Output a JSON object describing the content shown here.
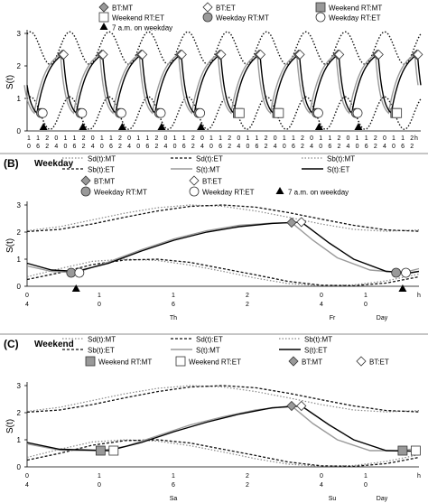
{
  "chart_data": [
    {
      "type": "line",
      "panel": "A",
      "ylabel": "S(t)",
      "ylim": [
        0,
        3
      ],
      "y_ticks": [
        "0",
        "1",
        "2",
        "3"
      ],
      "xlabel_unit": "h",
      "x_tick_labels": [
        "1|0",
        "1|6",
        "2|2",
        "0|4",
        "1|0",
        "1|6",
        "2|2",
        "0|4",
        "1|0",
        "1|6",
        "2|2",
        "0|4",
        "1|0",
        "1|6",
        "2|2",
        "0|4",
        "1|0",
        "1|6",
        "2|2",
        "0|4",
        "1|0",
        "1|6",
        "2|2",
        "0|4",
        "1|0",
        "1|6",
        "2|2",
        "0|4",
        "1|0",
        "1|6",
        "2|2",
        "0|4",
        "1|0",
        "1|6",
        "2|2",
        "0|4",
        "1|0",
        "1|6",
        "2|2",
        "0|4",
        "1|0",
        "1|6",
        "2|2"
      ],
      "legend": [
        {
          "label": "BT:MT",
          "marker": "diamond-grey"
        },
        {
          "label": "BT:ET",
          "marker": "diamond-open"
        },
        {
          "label": "Weekend RT:MT",
          "marker": "square-grey"
        },
        {
          "label": "Weekend RT:ET",
          "marker": "square-open"
        },
        {
          "label": "Weekday RT:MT",
          "marker": "circle-grey"
        },
        {
          "label": "Weekday RT:ET",
          "marker": "circle-open"
        },
        {
          "label": "7 a.m. on weekday",
          "marker": "triangle-black"
        }
      ],
      "grid": false,
      "series": [
        {
          "name": "",
          "style": "dotted",
          "period_h": 24,
          "mean": 2.55,
          "amp": 0.5
        },
        {
          "name": "",
          "style": "dotted",
          "period_h": 24,
          "mean": 0.55,
          "amp": 0.5
        },
        {
          "name": "",
          "style": "solid",
          "period_h": 24,
          "min": 0.55,
          "max": 2.35
        }
      ]
    },
    {
      "type": "line",
      "panel": "B",
      "panel_label": "(B)",
      "title": "Weekday",
      "ylabel": "S(t)",
      "ylim": [
        0,
        3
      ],
      "y_ticks": [
        "0",
        "1",
        "2",
        "3"
      ],
      "xlabel_unit": "h",
      "x_tick_labels": [
        "0|4",
        "1|0",
        "1|6",
        "2|2",
        "0|4",
        "1|0"
      ],
      "day_labels": [
        "Th",
        "Fr",
        "Day"
      ],
      "legend": [
        {
          "label": "Sd(t):MT",
          "style": "dotted-grey"
        },
        {
          "label": "Sd(t):ET",
          "style": "dashed-black"
        },
        {
          "label": "Sb(t):MT",
          "style": "dotted-grey"
        },
        {
          "label": "Sb(t):ET",
          "style": "dashed-black"
        },
        {
          "label": "S(t):MT",
          "style": "solid-grey"
        },
        {
          "label": "S(t):ET",
          "style": "solid-black"
        },
        {
          "label": "BT:MT",
          "marker": "diamond-grey"
        },
        {
          "label": "BT:ET",
          "marker": "diamond-open"
        },
        {
          "label": "Weekday RT:MT",
          "marker": "circle-grey"
        },
        {
          "label": "Weekday RT:ET",
          "marker": "circle-open"
        },
        {
          "label": "7 a.m. on weekday",
          "marker": "triangle-black"
        }
      ],
      "x_hours": [
        4,
        28
      ],
      "series": [
        {
          "name": "Sd(t):MT",
          "x": [
            4,
            6,
            8,
            10,
            12,
            14,
            16,
            18,
            20,
            22,
            24,
            26,
            28
          ],
          "y": [
            2.05,
            2.2,
            2.45,
            2.7,
            2.9,
            3.0,
            2.95,
            2.78,
            2.55,
            2.3,
            2.1,
            2.03,
            2.08
          ]
        },
        {
          "name": "Sd(t):ET",
          "x": [
            4,
            6,
            8,
            10,
            12,
            14,
            16,
            18,
            20,
            22,
            24,
            26,
            28
          ],
          "y": [
            2.02,
            2.1,
            2.3,
            2.55,
            2.78,
            2.95,
            3.0,
            2.92,
            2.72,
            2.48,
            2.25,
            2.08,
            2.03
          ]
        },
        {
          "name": "Sb(t):MT",
          "x": [
            4,
            6,
            8,
            10,
            12,
            14,
            16,
            18,
            20,
            22,
            24,
            26,
            28
          ],
          "y": [
            0.35,
            0.65,
            0.92,
            1.0,
            0.95,
            0.78,
            0.55,
            0.3,
            0.1,
            0.02,
            0.05,
            0.2,
            0.45
          ]
        },
        {
          "name": "Sb(t):ET",
          "x": [
            4,
            6,
            8,
            10,
            12,
            14,
            16,
            18,
            20,
            22,
            24,
            26,
            28
          ],
          "y": [
            0.25,
            0.5,
            0.8,
            0.97,
            1.0,
            0.88,
            0.65,
            0.42,
            0.18,
            0.04,
            0.02,
            0.12,
            0.35
          ]
        },
        {
          "name": "S(t):MT",
          "x": [
            4,
            5.5,
            7,
            9,
            11,
            13,
            15,
            17,
            19,
            20.2,
            21.5,
            23,
            25,
            27,
            28
          ],
          "y": [
            0.75,
            0.55,
            0.5,
            0.9,
            1.35,
            1.75,
            2.05,
            2.25,
            2.33,
            2.35,
            1.7,
            1.05,
            0.6,
            0.5,
            0.65
          ]
        },
        {
          "name": "S(t):ET",
          "x": [
            4,
            5.5,
            7,
            9,
            11,
            13,
            15,
            17,
            19,
            20.8,
            22.5,
            24,
            26,
            27.5,
            28
          ],
          "y": [
            0.85,
            0.6,
            0.55,
            0.85,
            1.3,
            1.7,
            2.0,
            2.2,
            2.32,
            2.37,
            1.6,
            1.0,
            0.55,
            0.5,
            0.55
          ]
        }
      ],
      "markers": [
        {
          "type": "circle-grey",
          "x": 6.7,
          "y": 0.5
        },
        {
          "type": "circle-open",
          "x": 7.2,
          "y": 0.5
        },
        {
          "type": "diamond-grey",
          "x": 20.2,
          "y": 2.35
        },
        {
          "type": "diamond-open",
          "x": 20.8,
          "y": 2.37
        },
        {
          "type": "circle-grey",
          "x": 26.6,
          "y": 0.5
        },
        {
          "type": "circle-open",
          "x": 27.2,
          "y": 0.5
        },
        {
          "type": "triangle-black",
          "x": 7.0,
          "y": 0
        },
        {
          "type": "triangle-black",
          "x": 27.0,
          "y": 0
        }
      ]
    },
    {
      "type": "line",
      "panel": "C",
      "panel_label": "(C)",
      "title": "Weekend",
      "ylabel": "S(t)",
      "ylim": [
        0,
        3
      ],
      "y_ticks": [
        "0",
        "1",
        "2",
        "3"
      ],
      "xlabel_unit": "h",
      "x_tick_labels": [
        "0|4",
        "1|0",
        "1|6",
        "2|2",
        "0|4",
        "1|0"
      ],
      "day_labels": [
        "Sa",
        "Su",
        "Day"
      ],
      "legend": [
        {
          "label": "Sd(t):MT",
          "style": "dotted-grey"
        },
        {
          "label": "Sd(t):ET",
          "style": "dashed-black"
        },
        {
          "label": "Sb(t):MT",
          "style": "dotted-grey"
        },
        {
          "label": "Sb(t):ET",
          "style": "dashed-black"
        },
        {
          "label": "S(t):MT",
          "style": "solid-grey"
        },
        {
          "label": "S(t):ET",
          "style": "solid-black"
        },
        {
          "label": "Weekend RT:MT",
          "marker": "square-grey"
        },
        {
          "label": "Weekend RT:ET",
          "marker": "square-open"
        },
        {
          "label": "BT:MT",
          "marker": "diamond-grey"
        },
        {
          "label": "BT:ET",
          "marker": "diamond-open"
        }
      ],
      "x_hours": [
        4,
        28
      ],
      "series": [
        {
          "name": "Sd(t):MT",
          "x": [
            4,
            6,
            8,
            10,
            12,
            14,
            16,
            18,
            20,
            22,
            24,
            26,
            28
          ],
          "y": [
            2.05,
            2.2,
            2.45,
            2.7,
            2.9,
            3.0,
            2.95,
            2.78,
            2.55,
            2.3,
            2.1,
            2.03,
            2.08
          ]
        },
        {
          "name": "Sd(t):ET",
          "x": [
            4,
            6,
            8,
            10,
            12,
            14,
            16,
            18,
            20,
            22,
            24,
            26,
            28
          ],
          "y": [
            2.02,
            2.1,
            2.3,
            2.55,
            2.78,
            2.95,
            3.0,
            2.92,
            2.72,
            2.48,
            2.25,
            2.08,
            2.03
          ]
        },
        {
          "name": "Sb(t):MT",
          "x": [
            4,
            6,
            8,
            10,
            12,
            14,
            16,
            18,
            20,
            22,
            24,
            26,
            28
          ],
          "y": [
            0.35,
            0.65,
            0.92,
            1.0,
            0.95,
            0.78,
            0.55,
            0.3,
            0.1,
            0.02,
            0.05,
            0.2,
            0.45
          ]
        },
        {
          "name": "Sb(t):ET",
          "x": [
            4,
            6,
            8,
            10,
            12,
            14,
            16,
            18,
            20,
            22,
            24,
            26,
            28
          ],
          "y": [
            0.25,
            0.5,
            0.8,
            0.97,
            1.0,
            0.88,
            0.65,
            0.42,
            0.18,
            0.04,
            0.02,
            0.12,
            0.35
          ]
        },
        {
          "name": "S(t):MT",
          "x": [
            4,
            6,
            8.5,
            10,
            12,
            14,
            16,
            18,
            20.2,
            21.5,
            23,
            25,
            27,
            28
          ],
          "y": [
            0.85,
            0.62,
            0.6,
            0.75,
            1.15,
            1.55,
            1.85,
            2.1,
            2.25,
            1.6,
            1.0,
            0.6,
            0.6,
            0.7
          ]
        },
        {
          "name": "S(t):ET",
          "x": [
            4,
            6,
            9,
            11,
            13,
            15,
            17,
            19,
            20.8,
            22.5,
            24,
            26,
            27.5,
            28
          ],
          "y": [
            0.9,
            0.65,
            0.6,
            0.9,
            1.3,
            1.65,
            1.95,
            2.18,
            2.25,
            1.55,
            1.0,
            0.6,
            0.58,
            0.62
          ]
        }
      ],
      "markers": [
        {
          "type": "square-grey",
          "x": 8.5,
          "y": 0.6
        },
        {
          "type": "square-open",
          "x": 9.3,
          "y": 0.6
        },
        {
          "type": "diamond-grey",
          "x": 20.2,
          "y": 2.25
        },
        {
          "type": "diamond-open",
          "x": 20.8,
          "y": 2.25
        },
        {
          "type": "square-grey",
          "x": 27.0,
          "y": 0.6
        },
        {
          "type": "square-open",
          "x": 27.8,
          "y": 0.6
        }
      ]
    }
  ]
}
